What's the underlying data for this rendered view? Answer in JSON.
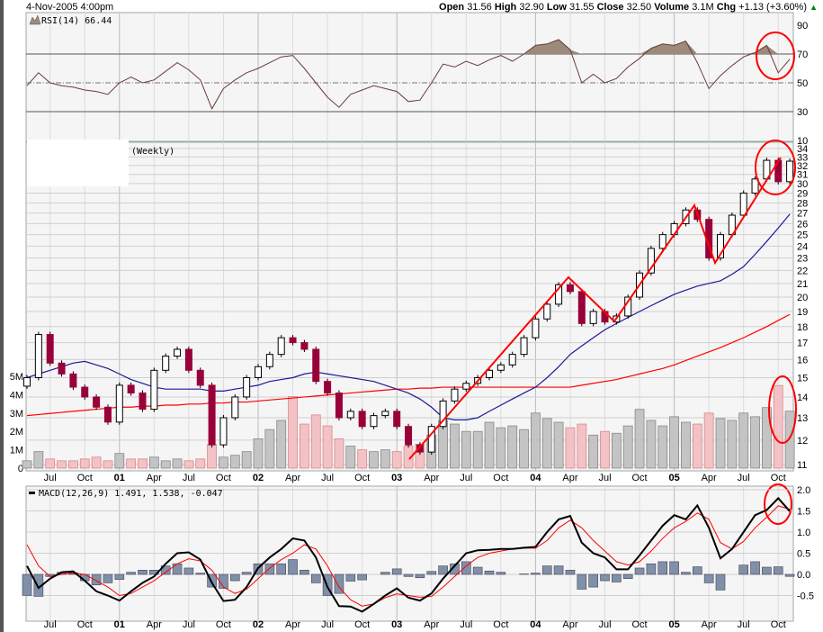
{
  "header": {
    "datetime": "4-Nov-2005 4:00pm",
    "open_label": "Open",
    "open": "31.56",
    "high_label": "High",
    "high": "32.90",
    "low_label": "Low",
    "low": "31.55",
    "close_label": "Close",
    "close": "32.50",
    "volume_label": "Volume",
    "volume": "3.1M",
    "chg_label": "Chg",
    "chg": "+1.13 (+3.60%)",
    "chg_icon": "up-triangle-icon",
    "chg_color": "#008000"
  },
  "rsi_panel": {
    "label": "RSI(14) 66.44",
    "icon": "rsi-mountain-icon"
  },
  "price_panel": {
    "label": "(Weekly)"
  },
  "macd_panel": {
    "label": "MACD(12,26,9) 1.491, 1.538, -0.047"
  },
  "colors": {
    "up_candle": "#ffffff",
    "down_candle": "#99003a",
    "ma_short": "#1a1a99",
    "ma_long": "#ff0000",
    "vol_up": "#c4c4c4",
    "vol_down": "#f2c2c6",
    "rsi_line": "#6b3b3b",
    "rsi_fill": "#9c8a7a",
    "macd_line": "#000000",
    "signal_line": "#ff0000",
    "histogram": "#8090a8",
    "annotation": "#ff0000"
  },
  "chart_data": {
    "type": "candlestick",
    "x": [
      "2000-05",
      "2000-06",
      "2000-07",
      "2000-08",
      "2000-09",
      "2000-10",
      "2000-11",
      "2000-12",
      "2001-01",
      "2001-02",
      "2001-03",
      "2001-04",
      "2001-05",
      "2001-06",
      "2001-07",
      "2001-08",
      "2001-09",
      "2001-10",
      "2001-11",
      "2001-12",
      "2002-01",
      "2002-02",
      "2002-03",
      "2002-04",
      "2002-05",
      "2002-06",
      "2002-07",
      "2002-08",
      "2002-09",
      "2002-10",
      "2002-11",
      "2002-12",
      "2003-01",
      "2003-02",
      "2003-03",
      "2003-04",
      "2003-05",
      "2003-06",
      "2003-07",
      "2003-08",
      "2003-09",
      "2003-10",
      "2003-11",
      "2003-12",
      "2004-01",
      "2004-02",
      "2004-03",
      "2004-04",
      "2004-05",
      "2004-06",
      "2004-07",
      "2004-08",
      "2004-09",
      "2004-10",
      "2004-11",
      "2004-12",
      "2005-01",
      "2005-02",
      "2005-03",
      "2005-04",
      "2005-05",
      "2005-06",
      "2005-07",
      "2005-08",
      "2005-09",
      "2005-10",
      "2005-11"
    ],
    "x_tick_labels": [
      {
        "label": "Jul",
        "bold": false
      },
      {
        "label": "Oct",
        "bold": false
      },
      {
        "label": "01",
        "bold": true
      },
      {
        "label": "Apr",
        "bold": false
      },
      {
        "label": "Jul",
        "bold": false
      },
      {
        "label": "Oct",
        "bold": false
      },
      {
        "label": "02",
        "bold": true
      },
      {
        "label": "Apr",
        "bold": false
      },
      {
        "label": "Jul",
        "bold": false
      },
      {
        "label": "Oct",
        "bold": false
      },
      {
        "label": "03",
        "bold": true
      },
      {
        "label": "Apr",
        "bold": false
      },
      {
        "label": "Jul",
        "bold": false
      },
      {
        "label": "Oct",
        "bold": false
      },
      {
        "label": "04",
        "bold": true
      },
      {
        "label": "Apr",
        "bold": false
      },
      {
        "label": "Jul",
        "bold": false
      },
      {
        "label": "Oct",
        "bold": false
      },
      {
        "label": "05",
        "bold": true
      },
      {
        "label": "Apr",
        "bold": false
      },
      {
        "label": "Jul",
        "bold": false
      },
      {
        "label": "Oct",
        "bold": false
      }
    ],
    "price": {
      "scale": "log",
      "ylim": [
        11,
        34
      ],
      "y_ticks": [
        34,
        33,
        32,
        31,
        30,
        29,
        28,
        27,
        26,
        25,
        24,
        23,
        22,
        21,
        20,
        19,
        18,
        17,
        16,
        15,
        14,
        13,
        12,
        11
      ],
      "close": [
        15.0,
        17.5,
        15.8,
        15.2,
        14.5,
        14.0,
        13.5,
        12.8,
        14.6,
        14.2,
        13.4,
        15.4,
        16.2,
        16.6,
        15.4,
        14.6,
        11.8,
        13.0,
        14.0,
        15.0,
        15.6,
        16.3,
        17.3,
        17.0,
        16.6,
        14.8,
        14.2,
        13.0,
        13.3,
        12.6,
        13.1,
        13.3,
        12.6,
        11.8,
        11.5,
        12.6,
        13.8,
        14.4,
        14.7,
        15.0,
        15.4,
        15.7,
        16.3,
        17.3,
        18.5,
        19.5,
        20.9,
        20.4,
        18.2,
        19.0,
        18.3,
        18.7,
        20.0,
        21.8,
        23.8,
        25.0,
        26.0,
        27.3,
        26.4,
        23.0,
        25.0,
        26.8,
        29.0,
        30.5,
        32.6,
        30.2,
        32.5
      ],
      "ma_short": [
        15.0,
        15.2,
        15.4,
        15.6,
        15.8,
        15.9,
        15.7,
        15.5,
        15.2,
        14.9,
        14.7,
        14.5,
        14.4,
        14.4,
        14.4,
        14.4,
        14.3,
        14.3,
        14.4,
        14.5,
        14.6,
        14.8,
        14.9,
        15.0,
        15.2,
        15.3,
        15.2,
        15.1,
        15.0,
        14.9,
        14.8,
        14.6,
        14.4,
        14.2,
        13.9,
        13.5,
        13.0,
        12.9,
        12.9,
        13.0,
        13.3,
        13.6,
        13.9,
        14.2,
        14.5,
        15.0,
        15.6,
        16.3,
        16.8,
        17.3,
        17.8,
        18.2,
        18.6,
        19.0,
        19.4,
        19.8,
        20.2,
        20.5,
        20.8,
        21.0,
        21.2,
        21.7,
        22.3,
        23.3,
        24.4,
        25.6,
        26.9
      ],
      "ma_long": [
        13.1,
        13.15,
        13.2,
        13.25,
        13.3,
        13.35,
        13.4,
        13.45,
        13.5,
        13.5,
        13.55,
        13.55,
        13.6,
        13.6,
        13.65,
        13.65,
        13.7,
        13.7,
        13.75,
        13.75,
        13.8,
        13.85,
        13.9,
        13.95,
        14.0,
        14.05,
        14.1,
        14.15,
        14.2,
        14.25,
        14.3,
        14.35,
        14.4,
        14.4,
        14.45,
        14.45,
        14.5,
        14.5,
        14.5,
        14.5,
        14.5,
        14.5,
        14.5,
        14.5,
        14.5,
        14.5,
        14.5,
        14.5,
        14.6,
        14.7,
        14.8,
        14.9,
        15.05,
        15.2,
        15.35,
        15.5,
        15.7,
        15.95,
        16.2,
        16.45,
        16.7,
        17.0,
        17.3,
        17.65,
        18.0,
        18.4,
        18.8
      ]
    },
    "volume": {
      "unit": "M",
      "y_ticks": [
        "5M",
        "4M",
        "3M",
        "2M",
        "1M",
        "0"
      ],
      "values": [
        0.4,
        0.9,
        0.5,
        0.4,
        0.4,
        0.5,
        0.6,
        0.4,
        0.8,
        0.5,
        0.5,
        0.6,
        0.4,
        0.5,
        0.4,
        0.5,
        1.3,
        0.6,
        0.7,
        0.9,
        1.6,
        2.1,
        2.6,
        3.9,
        2.4,
        2.9,
        2.3,
        1.6,
        1.2,
        1.0,
        0.9,
        1.0,
        0.9,
        1.2,
        1.3,
        1.8,
        2.6,
        2.4,
        2.0,
        2.0,
        2.5,
        2.2,
        2.3,
        2.1,
        3.0,
        2.7,
        2.5,
        2.2,
        2.4,
        1.8,
        2.0,
        1.9,
        2.3,
        3.2,
        2.6,
        2.3,
        2.8,
        2.5,
        2.4,
        3.0,
        2.7,
        2.6,
        3.0,
        2.8,
        3.3,
        4.5,
        3.1
      ]
    },
    "rsi": {
      "ylim": [
        10,
        90
      ],
      "y_ticks": [
        90,
        70,
        50,
        30,
        10
      ],
      "levels": [
        70,
        50,
        30
      ],
      "values": [
        48,
        57,
        50,
        48,
        47,
        45,
        44,
        42,
        50,
        54,
        50,
        52,
        58,
        64,
        59,
        52,
        32,
        46,
        52,
        57,
        60,
        64,
        68,
        69,
        60,
        50,
        40,
        33,
        42,
        45,
        48,
        46,
        44,
        37,
        38,
        50,
        63,
        61,
        65,
        62,
        66,
        69,
        65,
        70,
        76,
        77,
        80,
        73,
        50,
        56,
        50,
        53,
        61,
        67,
        74,
        77,
        76,
        79,
        64,
        46,
        55,
        62,
        68,
        71,
        76,
        57,
        66.44
      ]
    },
    "macd": {
      "ylim": [
        -0.9,
        2.1
      ],
      "y_ticks": [
        "2.0",
        "1.5",
        "1.0",
        "0.5",
        "0.0",
        "-0.5"
      ],
      "macd": [
        0.2,
        -0.32,
        -0.1,
        0.05,
        0.07,
        -0.15,
        -0.4,
        -0.5,
        -0.62,
        -0.4,
        -0.2,
        -0.05,
        0.25,
        0.5,
        0.52,
        0.35,
        -0.2,
        -0.63,
        -0.6,
        -0.3,
        0.15,
        0.4,
        0.6,
        0.85,
        0.8,
        0.4,
        -0.3,
        -0.75,
        -0.76,
        -0.88,
        -0.7,
        -0.5,
        -0.33,
        -0.55,
        -0.62,
        -0.45,
        -0.1,
        0.2,
        0.5,
        0.57,
        0.58,
        0.6,
        0.6,
        0.63,
        0.65,
        1.0,
        1.3,
        1.38,
        0.75,
        0.5,
        0.4,
        0.12,
        0.12,
        0.45,
        0.8,
        1.15,
        1.4,
        1.3,
        1.63,
        1.1,
        0.38,
        0.6,
        1.0,
        1.4,
        1.52,
        1.8,
        1.491
      ],
      "signal": [
        0.7,
        0.2,
        -0.05,
        0.0,
        0.03,
        0.0,
        -0.15,
        -0.3,
        -0.5,
        -0.45,
        -0.3,
        -0.15,
        0.05,
        0.25,
        0.37,
        0.32,
        0.1,
        -0.3,
        -0.45,
        -0.35,
        -0.1,
        0.15,
        0.35,
        0.5,
        0.7,
        0.6,
        0.2,
        -0.3,
        -0.6,
        -0.75,
        -0.7,
        -0.55,
        -0.46,
        -0.5,
        -0.54,
        -0.52,
        -0.3,
        -0.05,
        0.2,
        0.4,
        0.5,
        0.55,
        0.6,
        0.62,
        0.62,
        0.8,
        1.1,
        1.28,
        1.1,
        0.8,
        0.55,
        0.3,
        0.22,
        0.3,
        0.55,
        0.85,
        1.1,
        1.25,
        1.45,
        1.3,
        0.75,
        0.6,
        0.78,
        1.1,
        1.35,
        1.62,
        1.538
      ]
    }
  }
}
